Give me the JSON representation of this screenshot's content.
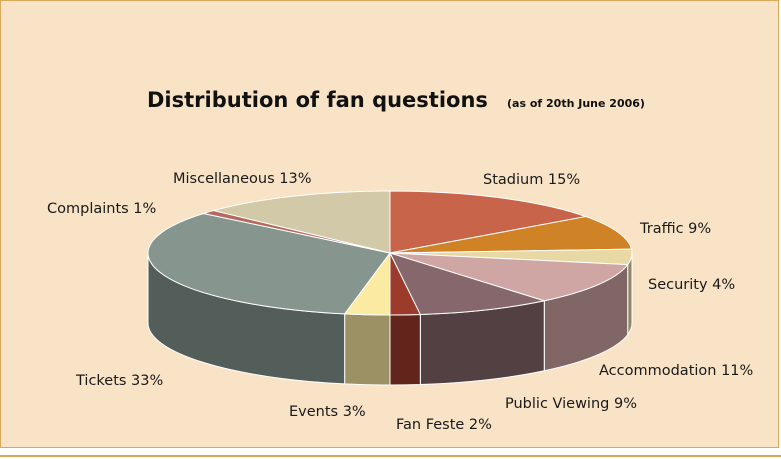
{
  "chart_data": {
    "type": "pie",
    "title": "Distribution of fan questions",
    "subtitle": "(as of 20th June 2006)",
    "slices": [
      {
        "label": "Stadium",
        "value": 15,
        "display": "Stadium 15%",
        "color": "#c8644a"
      },
      {
        "label": "Traffic",
        "value": 9,
        "display": "Traffic 9%",
        "color": "#cf8226"
      },
      {
        "label": "Security",
        "value": 4,
        "display": "Security 4%",
        "color": "#e8d8a4"
      },
      {
        "label": "Accommodation",
        "value": 11,
        "display": "Accommodation 11%",
        "color": "#cfa6a3"
      },
      {
        "label": "Public Viewing",
        "value": 9,
        "display": "Public Viewing 9%",
        "color": "#86686c"
      },
      {
        "label": "Fan Feste",
        "value": 2,
        "display": "Fan Feste 2%",
        "color": "#9c3b2c"
      },
      {
        "label": "Events",
        "value": 3,
        "display": "Events 3%",
        "color": "#faeaa2"
      },
      {
        "label": "Tickets",
        "value": 33,
        "display": "Tickets 33%",
        "color": "#86968f"
      },
      {
        "label": "Complaints",
        "value": 1,
        "display": "Complaints 1%",
        "color": "#b56a60"
      },
      {
        "label": "Miscellaneous",
        "value": 13,
        "display": "Miscellaneous 13%",
        "color": "#d2c9a8"
      }
    ]
  }
}
